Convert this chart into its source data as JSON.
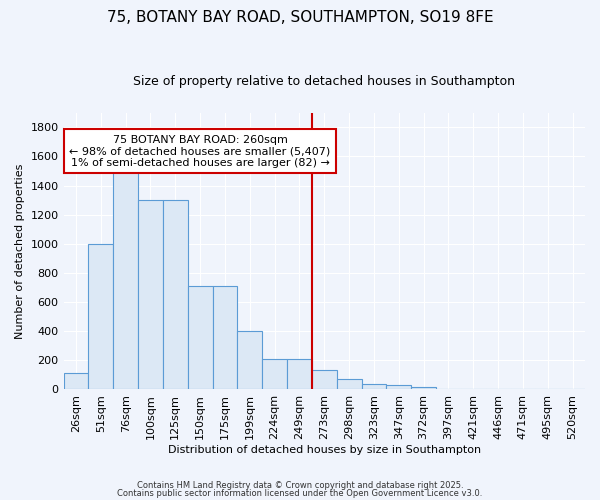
{
  "title": "75, BOTANY BAY ROAD, SOUTHAMPTON, SO19 8FE",
  "subtitle": "Size of property relative to detached houses in Southampton",
  "xlabel": "Distribution of detached houses by size in Southampton",
  "ylabel": "Number of detached properties",
  "bar_labels": [
    "26sqm",
    "51sqm",
    "76sqm",
    "100sqm",
    "125sqm",
    "150sqm",
    "175sqm",
    "199sqm",
    "224sqm",
    "249sqm",
    "273sqm",
    "298sqm",
    "323sqm",
    "347sqm",
    "372sqm",
    "397sqm",
    "421sqm",
    "446sqm",
    "471sqm",
    "495sqm",
    "520sqm"
  ],
  "bar_values": [
    110,
    1000,
    1500,
    1300,
    1300,
    710,
    710,
    400,
    210,
    210,
    135,
    75,
    40,
    30,
    20,
    0,
    0,
    0,
    0,
    0,
    0
  ],
  "bar_color": "#dce8f5",
  "bar_edge_color": "#5b9bd5",
  "ylim": [
    0,
    1900
  ],
  "yticks": [
    0,
    200,
    400,
    600,
    800,
    1000,
    1200,
    1400,
    1600,
    1800
  ],
  "red_line_x": 9.5,
  "annotation_text": "75 BOTANY BAY ROAD: 260sqm\n← 98% of detached houses are smaller (5,407)\n1% of semi-detached houses are larger (82) →",
  "annotation_box_facecolor": "#ffffff",
  "annotation_box_edgecolor": "#cc0000",
  "red_line_color": "#cc0000",
  "fig_bg_color": "#f0f4fc",
  "plot_bg_color": "#f0f4fc",
  "grid_color": "#ffffff",
  "footer_line1": "Contains HM Land Registry data © Crown copyright and database right 2025.",
  "footer_line2": "Contains public sector information licensed under the Open Government Licence v3.0.",
  "title_fontsize": 11,
  "subtitle_fontsize": 9,
  "axis_label_fontsize": 8,
  "tick_fontsize": 8,
  "annotation_fontsize": 8
}
